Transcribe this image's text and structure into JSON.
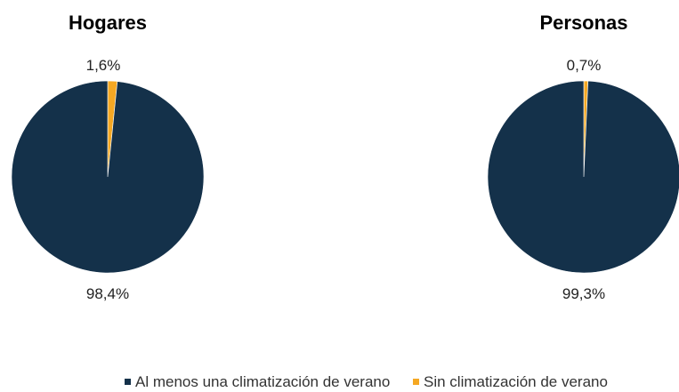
{
  "chart_data": [
    {
      "type": "pie",
      "title": "Hogares",
      "categories": [
        "Al menos una climatización de verano",
        "Sin climatización de verano"
      ],
      "values": [
        98.4,
        1.6
      ],
      "labels": [
        "98,4%",
        "1,6%"
      ],
      "colors": [
        "#14314a",
        "#f5a823"
      ]
    },
    {
      "type": "pie",
      "title": "Personas",
      "categories": [
        "Al menos una climatización de verano",
        "Sin climatización de verano"
      ],
      "values": [
        99.3,
        0.7
      ],
      "labels": [
        "99,3%",
        "0,7%"
      ],
      "colors": [
        "#14314a",
        "#f5a823"
      ]
    }
  ],
  "legend": {
    "placement": "bottom",
    "items": [
      {
        "label": "Al menos una climatización de verano",
        "color": "#14314a"
      },
      {
        "label": "Sin climatización de verano",
        "color": "#f5a823"
      }
    ]
  }
}
